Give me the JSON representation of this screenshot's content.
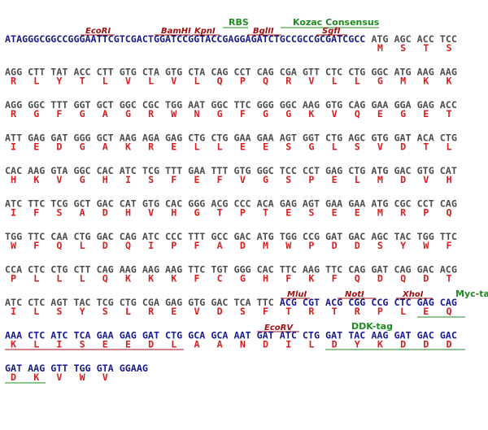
{
  "labels": {
    "rbs": "RBS",
    "kozak": "Kozac Consensus",
    "ecori": "EcoRI",
    "bamhi": "BamHI",
    "kpni": "KpnI",
    "bglii": "BglII",
    "sgfi": "SgfI",
    "mlui": "MluI",
    "noti": "NotI",
    "xhoi": "XhoI",
    "myc": "Myc-tag",
    "ecorv": "EcoRV",
    "ddk": "DDK-tag"
  },
  "lines": [
    {
      "segments": [
        {
          "seq": "ATAGGGCGGCCGGGAATTCGTCGACTGGATCCGGTACCGAGGAGATCTGCCGCCGCGATCGCC",
          "color": "#1a1a8c"
        },
        {
          "seq": " ATG AGC ACC TCC",
          "color": "#4d4d4d"
        }
      ],
      "protein": [
        "M",
        "S",
        "T",
        "S"
      ]
    },
    {
      "segments": [
        {
          "seq": "AGG CTT TAT ACC CTT GTG CTA GTG CTA CAG CCT CAG CGA GTT CTC CTG GGC ATG AAG AAG",
          "color": "#4d4d4d"
        }
      ],
      "protein": [
        "R",
        "L",
        "Y",
        "T",
        "L",
        "V",
        "L",
        "V",
        "L",
        "Q",
        "P",
        "Q",
        "R",
        "V",
        "L",
        "L",
        "G",
        "M",
        "K",
        "K"
      ]
    },
    {
      "segments": [
        {
          "seq": "AGG GGC TTT GGT GCT GGC CGC TGG AAT GGC TTC GGG GGC AAG GTG CAG GAA GGA GAG ACC",
          "color": "#4d4d4d"
        }
      ],
      "protein": [
        "R",
        "G",
        "F",
        "G",
        "A",
        "G",
        "R",
        "W",
        "N",
        "G",
        "F",
        "G",
        "G",
        "K",
        "V",
        "Q",
        "E",
        "G",
        "E",
        "T"
      ]
    },
    {
      "segments": [
        {
          "seq": "ATT GAG GAT GGG GCT AAG AGA GAG CTG CTG GAA GAA AGT GGT CTG AGC GTG GAT ACA CTG",
          "color": "#4d4d4d"
        }
      ],
      "protein": [
        "I",
        "E",
        "D",
        "G",
        "A",
        "K",
        "R",
        "E",
        "L",
        "L",
        "E",
        "E",
        "S",
        "G",
        "L",
        "S",
        "V",
        "D",
        "T",
        "L"
      ]
    },
    {
      "segments": [
        {
          "seq": "CAC AAG GTA GGC CAC ATC TCG TTT GAA TTT GTG GGC TCC CCT GAG CTG ATG GAC GTG CAT",
          "color": "#4d4d4d"
        }
      ],
      "protein": [
        "H",
        "K",
        "V",
        "G",
        "H",
        "I",
        "S",
        "F",
        "E",
        "F",
        "V",
        "G",
        "S",
        "P",
        "E",
        "L",
        "M",
        "D",
        "V",
        "H"
      ]
    },
    {
      "segments": [
        {
          "seq": "ATC TTC TCG GCT GAC CAT GTG CAC GGG ACG CCC ACA GAG AGT GAA GAA ATG CGC CCT CAG",
          "color": "#4d4d4d"
        }
      ],
      "protein": [
        "I",
        "F",
        "S",
        "A",
        "D",
        "H",
        "V",
        "H",
        "G",
        "T",
        "P",
        "T",
        "E",
        "S",
        "E",
        "E",
        "M",
        "R",
        "P",
        "Q"
      ]
    },
    {
      "segments": [
        {
          "seq": "TGG TTC CAA CTG GAC CAG ATC CCC TTT GCC GAC ATG TGG CCG GAT GAC AGC TAC TGG TTC",
          "color": "#4d4d4d"
        }
      ],
      "protein": [
        "W",
        "F",
        "Q",
        "L",
        "D",
        "Q",
        "I",
        "P",
        "F",
        "A",
        "D",
        "M",
        "W",
        "P",
        "D",
        "D",
        "S",
        "Y",
        "W",
        "F"
      ]
    },
    {
      "segments": [
        {
          "seq": "CCA CTC CTG CTT CAG AAG AAG AAG TTC TGT GGG CAC TTC AAG TTC CAG GAT CAG GAC ACG",
          "color": "#4d4d4d"
        }
      ],
      "protein": [
        "P",
        "L",
        "L",
        "L",
        "Q",
        "K",
        "K",
        "K",
        "F",
        "C",
        "G",
        "H",
        "F",
        "K",
        "F",
        "Q",
        "D",
        "Q",
        "D",
        "T"
      ]
    },
    {
      "segments": [
        {
          "seq": "ATC CTC AGT TAC TCG CTG CGA GAG GTG GAC TCA TTC ",
          "color": "#4d4d4d"
        },
        {
          "seq": "ACG CGT ACG CGG CCG CTC GAG CAG",
          "color": "#1a1a8c"
        }
      ],
      "protein": [
        "I",
        "L",
        "S",
        "Y",
        "S",
        "L",
        "R",
        "E",
        "V",
        "D",
        "S",
        "F",
        "T",
        "R",
        "T",
        "R",
        "P",
        "L",
        "E",
        "Q"
      ]
    },
    {
      "segments": [
        {
          "seq": "AAA CTC ATC TCA GAA GAG GAT CTG GCA GCA AAT GAT ATC CTG GAT TAC AAG GAT GAC GAC",
          "color": "#1a1a8c"
        }
      ],
      "protein": [
        "K",
        "L",
        "I",
        "S",
        "E",
        "E",
        "D",
        "L",
        "A",
        "A",
        "N",
        "D",
        "I",
        "L",
        "D",
        "Y",
        "K",
        "D",
        "D",
        "D"
      ]
    },
    {
      "segments": [
        {
          "seq": "GAT AAG GTT TGG GTA GGAAG",
          "color": "#1a1a8c"
        }
      ],
      "protein": [
        "D",
        "K",
        "V",
        "W",
        "V"
      ]
    }
  ]
}
